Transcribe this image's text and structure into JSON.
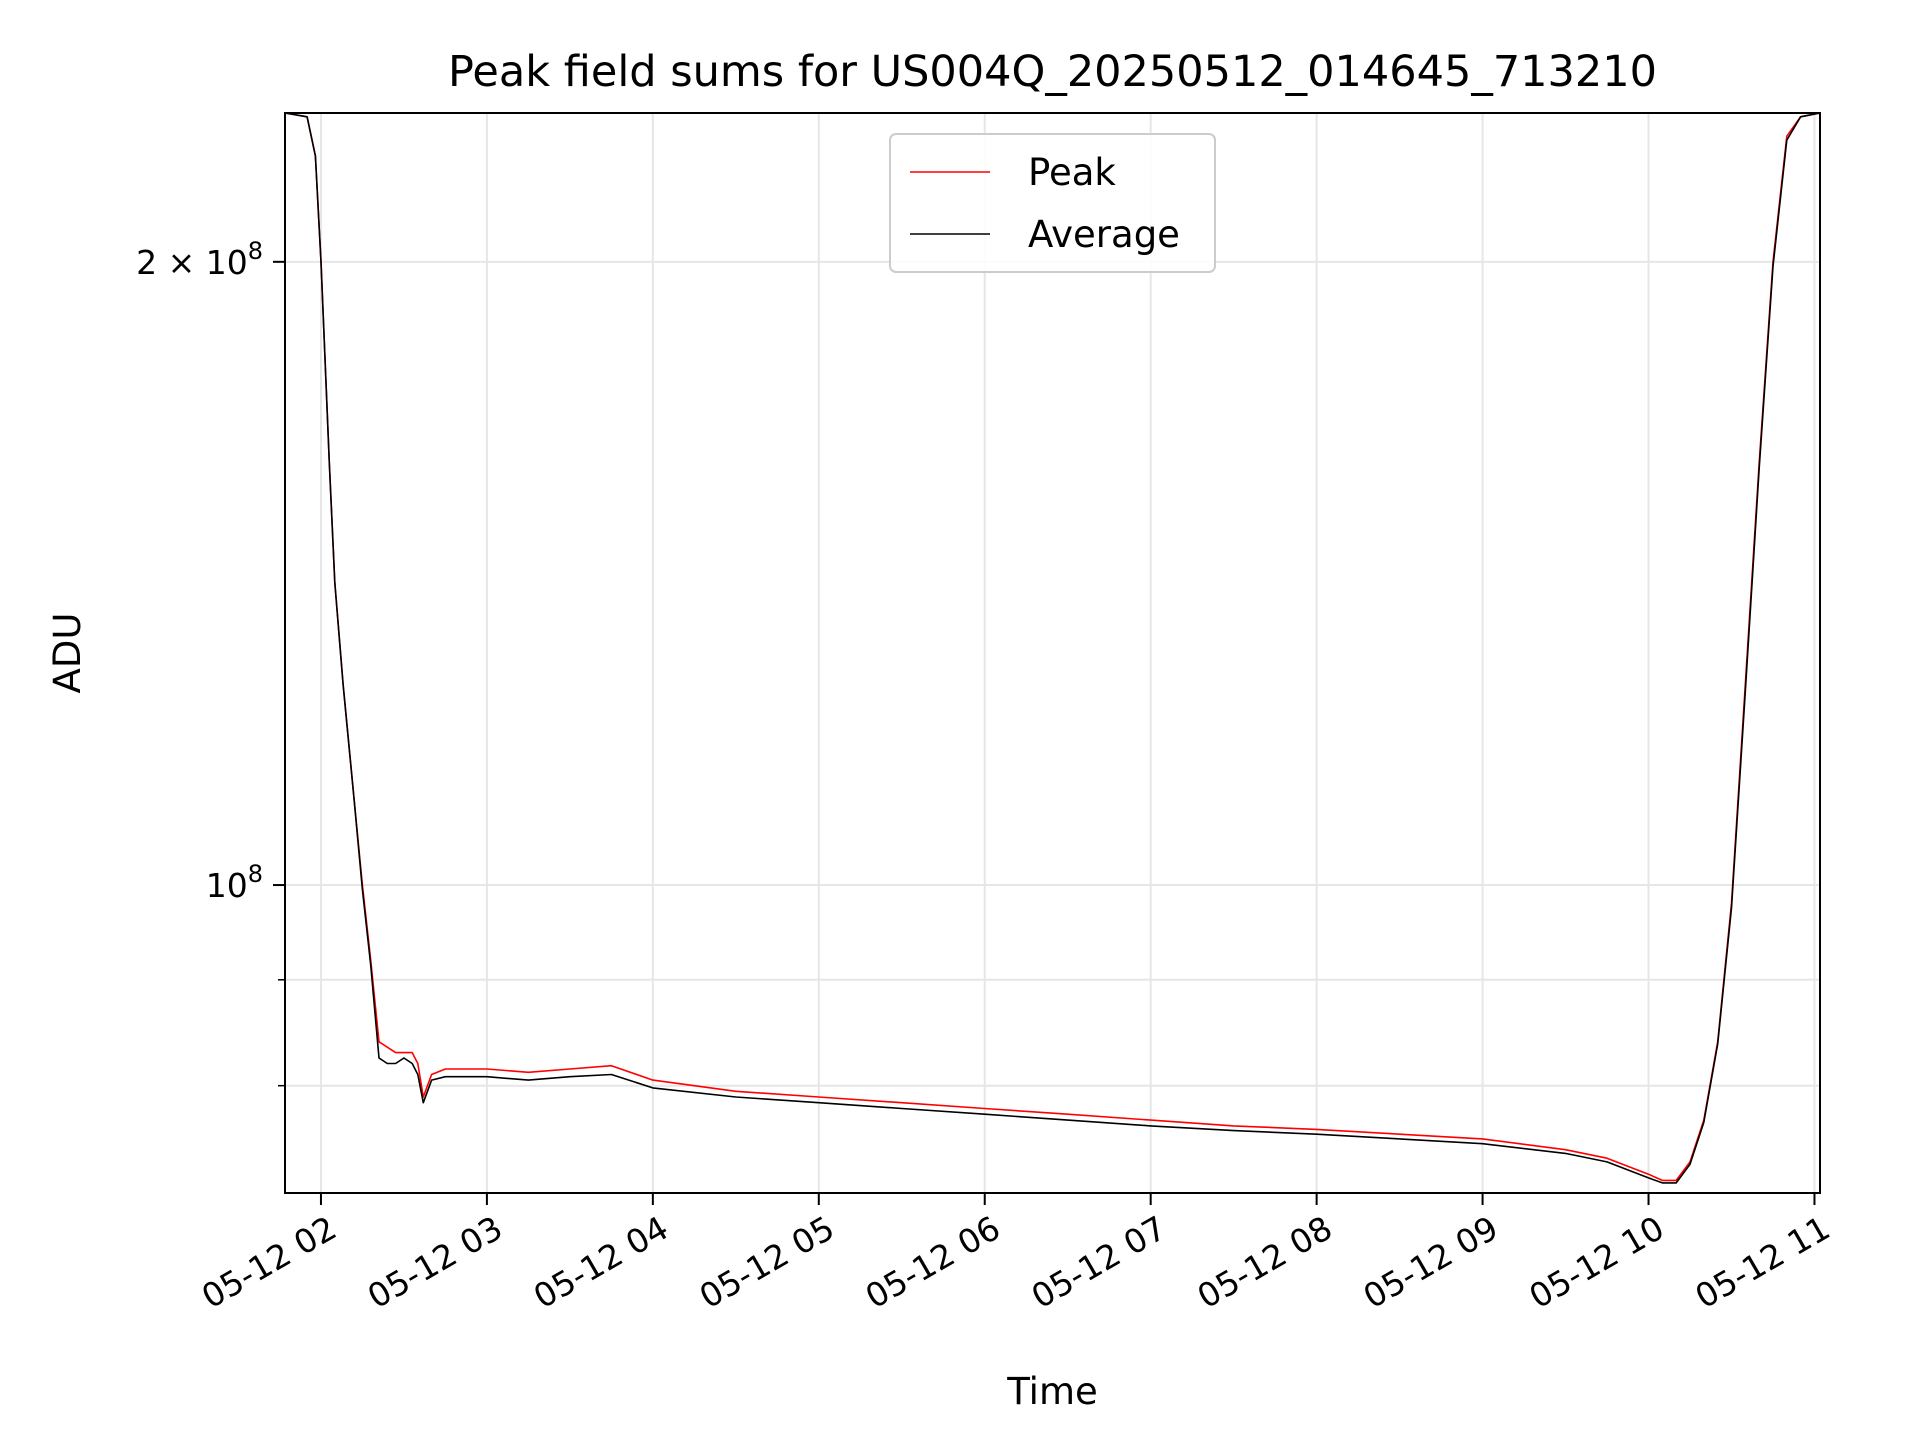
{
  "chart_data": {
    "type": "line",
    "title": "Peak field sums for US004Q_20250512_014645_713210",
    "xlabel": "Time",
    "ylabel": "ADU",
    "y_scale": "log",
    "ylim": [
      71000000,
      236000000
    ],
    "xlim": [
      "2025-05-12 01:47",
      "2025-05-12 11:02"
    ],
    "x_ticks": [
      {
        "at": "2025-05-12 02:00",
        "label": "05-12 02"
      },
      {
        "at": "2025-05-12 03:00",
        "label": "05-12 03"
      },
      {
        "at": "2025-05-12 04:00",
        "label": "05-12 04"
      },
      {
        "at": "2025-05-12 05:00",
        "label": "05-12 05"
      },
      {
        "at": "2025-05-12 06:00",
        "label": "05-12 06"
      },
      {
        "at": "2025-05-12 07:00",
        "label": "05-12 07"
      },
      {
        "at": "2025-05-12 08:00",
        "label": "05-12 08"
      },
      {
        "at": "2025-05-12 09:00",
        "label": "05-12 09"
      },
      {
        "at": "2025-05-12 10:00",
        "label": "05-12 10"
      },
      {
        "at": "2025-05-12 11:00",
        "label": "05-12 11"
      }
    ],
    "y_ticks_major": [
      {
        "value": 100000000,
        "label_base": "10",
        "label_exp": "8"
      },
      {
        "value": 200000000,
        "label_base": "2 × 10",
        "label_exp": "8"
      }
    ],
    "y_ticks_minor": [
      80000000,
      90000000
    ],
    "grid": true,
    "legend_position": "upper-center",
    "series": [
      {
        "name": "Peak",
        "color": "#ff0000",
        "x": [
          "2025-05-12 01:47",
          "2025-05-12 01:55",
          "2025-05-12 01:58",
          "2025-05-12 02:00",
          "2025-05-12 02:03",
          "2025-05-12 02:05",
          "2025-05-12 02:08",
          "2025-05-12 02:12",
          "2025-05-12 02:15",
          "2025-05-12 02:18",
          "2025-05-12 02:21",
          "2025-05-12 02:24",
          "2025-05-12 02:27",
          "2025-05-12 02:30",
          "2025-05-12 02:33",
          "2025-05-12 02:35",
          "2025-05-12 02:37",
          "2025-05-12 02:40",
          "2025-05-12 02:45",
          "2025-05-12 03:00",
          "2025-05-12 03:15",
          "2025-05-12 03:30",
          "2025-05-12 03:45",
          "2025-05-12 04:00",
          "2025-05-12 04:30",
          "2025-05-12 05:00",
          "2025-05-12 05:30",
          "2025-05-12 06:00",
          "2025-05-12 06:30",
          "2025-05-12 07:00",
          "2025-05-12 07:30",
          "2025-05-12 08:00",
          "2025-05-12 08:30",
          "2025-05-12 09:00",
          "2025-05-12 09:30",
          "2025-05-12 09:45",
          "2025-05-12 10:00",
          "2025-05-12 10:05",
          "2025-05-12 10:10",
          "2025-05-12 10:15",
          "2025-05-12 10:20",
          "2025-05-12 10:25",
          "2025-05-12 10:30",
          "2025-05-12 10:35",
          "2025-05-12 10:40",
          "2025-05-12 10:45",
          "2025-05-12 10:50",
          "2025-05-12 10:55",
          "2025-05-12 11:02"
        ],
        "y": [
          236000000,
          235000000,
          225000000,
          200000000,
          160000000,
          140000000,
          125000000,
          110000000,
          100000000,
          92000000,
          84000000,
          83500000,
          83000000,
          83000000,
          83000000,
          82000000,
          79000000,
          81000000,
          81500000,
          81500000,
          81200000,
          81500000,
          81800000,
          80500000,
          79500000,
          79000000,
          78500000,
          78000000,
          77500000,
          77000000,
          76500000,
          76200000,
          75800000,
          75400000,
          74500000,
          73800000,
          72500000,
          72000000,
          72000000,
          73500000,
          77000000,
          84000000,
          98000000,
          125000000,
          160000000,
          200000000,
          230000000,
          235000000,
          236000000
        ]
      },
      {
        "name": "Average",
        "color": "#000000",
        "x": [
          "2025-05-12 01:47",
          "2025-05-12 01:55",
          "2025-05-12 01:58",
          "2025-05-12 02:00",
          "2025-05-12 02:03",
          "2025-05-12 02:05",
          "2025-05-12 02:08",
          "2025-05-12 02:12",
          "2025-05-12 02:15",
          "2025-05-12 02:18",
          "2025-05-12 02:21",
          "2025-05-12 02:24",
          "2025-05-12 02:27",
          "2025-05-12 02:30",
          "2025-05-12 02:33",
          "2025-05-12 02:35",
          "2025-05-12 02:37",
          "2025-05-12 02:40",
          "2025-05-12 02:45",
          "2025-05-12 03:00",
          "2025-05-12 03:15",
          "2025-05-12 03:30",
          "2025-05-12 03:45",
          "2025-05-12 04:00",
          "2025-05-12 04:30",
          "2025-05-12 05:00",
          "2025-05-12 05:30",
          "2025-05-12 06:00",
          "2025-05-12 06:30",
          "2025-05-12 07:00",
          "2025-05-12 07:30",
          "2025-05-12 08:00",
          "2025-05-12 08:30",
          "2025-05-12 09:00",
          "2025-05-12 09:30",
          "2025-05-12 09:45",
          "2025-05-12 10:00",
          "2025-05-12 10:05",
          "2025-05-12 10:10",
          "2025-05-12 10:15",
          "2025-05-12 10:20",
          "2025-05-12 10:25",
          "2025-05-12 10:30",
          "2025-05-12 10:35",
          "2025-05-12 10:40",
          "2025-05-12 10:45",
          "2025-05-12 10:50",
          "2025-05-12 10:55",
          "2025-05-12 11:02"
        ],
        "y": [
          236000000,
          235000000,
          225000000,
          200000000,
          160000000,
          140000000,
          125000000,
          110000000,
          99500000,
          91500000,
          82500000,
          82000000,
          82000000,
          82500000,
          82000000,
          81000000,
          78500000,
          80500000,
          80800000,
          80800000,
          80500000,
          80800000,
          81000000,
          79800000,
          79000000,
          78500000,
          78000000,
          77500000,
          77000000,
          76500000,
          76100000,
          75800000,
          75400000,
          75000000,
          74200000,
          73500000,
          72200000,
          71800000,
          71800000,
          73300000,
          76800000,
          83800000,
          97500000,
          124000000,
          159000000,
          199000000,
          229000000,
          235000000,
          236000000
        ]
      }
    ]
  }
}
